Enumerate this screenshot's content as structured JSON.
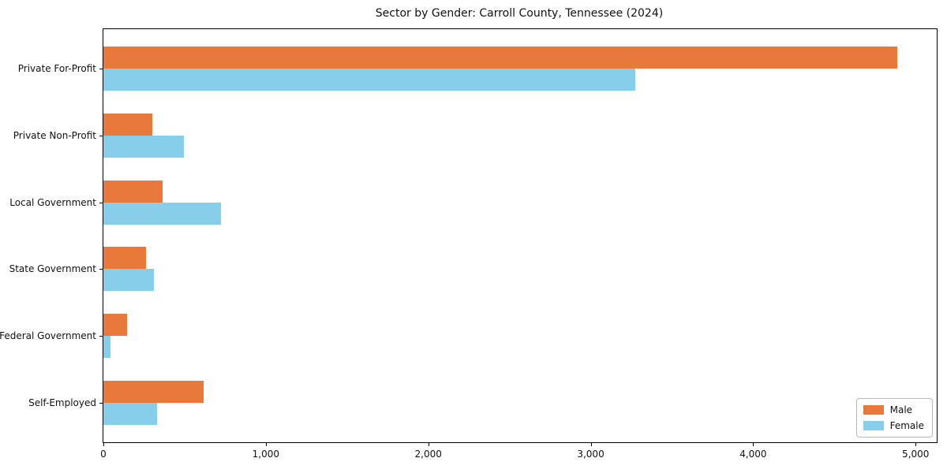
{
  "chart_data": {
    "type": "bar",
    "orientation": "horizontal",
    "title": "Sector by Gender: Carroll County, Tennessee (2024)",
    "categories": [
      "Private For-Profit",
      "Private Non-Profit",
      "Local Government",
      "State Government",
      "Federal Government",
      "Self-Employed"
    ],
    "series": [
      {
        "name": "Male",
        "color": "#e8793b",
        "values": [
          4885,
          300,
          365,
          260,
          145,
          615
        ]
      },
      {
        "name": "Female",
        "color": "#87ceeb",
        "values": [
          3275,
          495,
          725,
          310,
          45,
          330
        ]
      }
    ],
    "xlabel": "",
    "ylabel": "",
    "xlim": [
      0,
      5130
    ],
    "xticks": {
      "values": [
        0,
        1000,
        2000,
        3000,
        4000,
        5000
      ],
      "labels": [
        "0",
        "1,000",
        "2,000",
        "3,000",
        "4,000",
        "5,000"
      ]
    },
    "grid": false,
    "legend_position": "lower right"
  }
}
